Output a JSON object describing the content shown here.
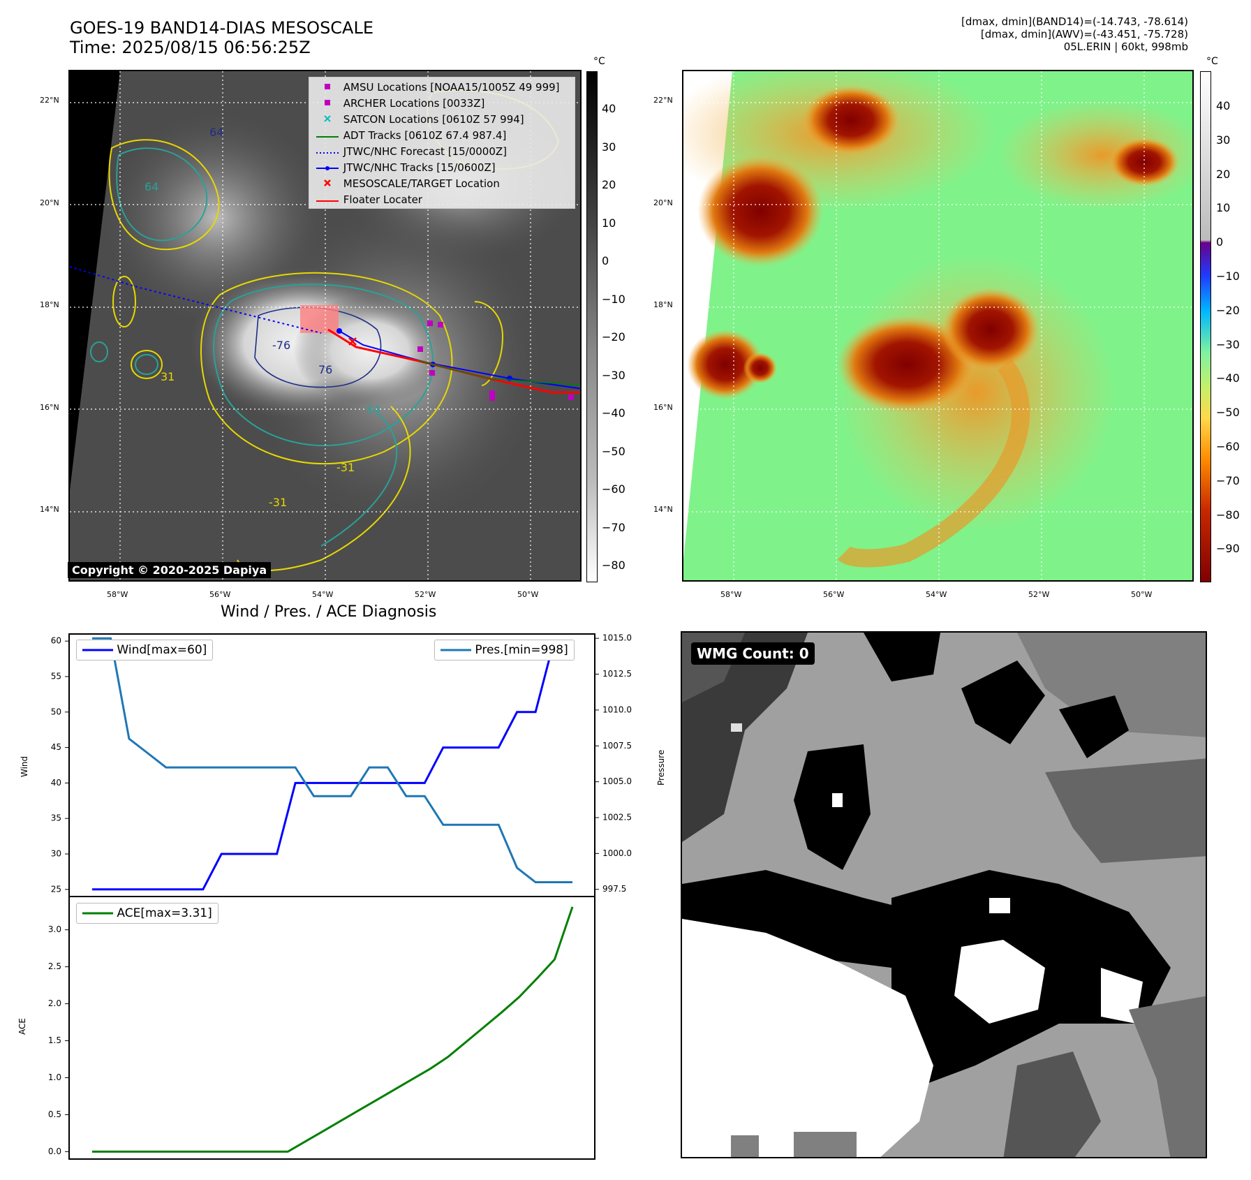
{
  "header": {
    "title_line1": "GOES-19 BAND14-DIAS MESOSCALE",
    "title_line2": "Time: 2025/08/15 06:56:25Z",
    "info_line1": "[dmax, dmin](BAND14)=(-14.743, -78.614)",
    "info_line2": "[dmax, dmin](AWV)=(-43.451, -75.728)",
    "info_line3": "05L.ERIN | 60kt, 998mb"
  },
  "map": {
    "lat_labels": [
      "22°N",
      "20°N",
      "18°N",
      "16°N",
      "14°N"
    ],
    "lon_labels": [
      "58°W",
      "56°W",
      "54°W",
      "52°W",
      "50°W"
    ],
    "copyright": "Copyright © 2020-2025 Dapiya",
    "contour_labels": [
      "64",
      "64",
      "64",
      "-76",
      "76",
      "-31",
      "-31",
      "31"
    ],
    "legend": [
      {
        "label": "AMSU Locations [NOAA15/1005Z 49 999]",
        "color": "#c000c0",
        "symbol": "square"
      },
      {
        "label": "ARCHER Locations [0033Z]",
        "color": "#c000c0",
        "symbol": "square"
      },
      {
        "label": "SATCON Locations [0610Z 57 994]",
        "color": "#00bfbf",
        "symbol": "x"
      },
      {
        "label": "ADT Tracks [0610Z 67.4 987.4]",
        "color": "#008000",
        "symbol": "line"
      },
      {
        "label": "JTWC/NHC Forecast [15/0000Z]",
        "color": "#0000ff",
        "symbol": "dotted"
      },
      {
        "label": "JTWC/NHC Tracks [15/0600Z]",
        "color": "#0000ff",
        "symbol": "line-dot"
      },
      {
        "label": "MESOSCALE/TARGET Location",
        "color": "#ff0000",
        "symbol": "x"
      },
      {
        "label": "Floater Locater",
        "color": "#ff0000",
        "symbol": "line"
      }
    ]
  },
  "colorbar_left": {
    "unit": "°C",
    "ticks": [
      "40",
      "30",
      "20",
      "10",
      "0",
      "−10",
      "−20",
      "−30",
      "−40",
      "−50",
      "−60",
      "−70",
      "−80"
    ]
  },
  "colorbar_right": {
    "unit": "°C",
    "ticks": [
      "40",
      "30",
      "20",
      "10",
      "0",
      "−10",
      "−20",
      "−30",
      "−40",
      "−50",
      "−60",
      "−70",
      "−80",
      "−90"
    ]
  },
  "diagnosis": {
    "title": "Wind / Pres. / ACE Diagnosis",
    "wind_legend": "Wind[max=60]",
    "pres_legend": "Pres.[min=998]",
    "ace_legend": "ACE[max=3.31]",
    "wind_axis_label": "Wind",
    "pres_axis_label": "Pressure",
    "ace_axis_label": "ACE",
    "wind_ticks": [
      "60",
      "55",
      "50",
      "45",
      "40",
      "35",
      "30",
      "25"
    ],
    "pres_ticks": [
      "1015.0",
      "1012.5",
      "1010.0",
      "1007.5",
      "1005.0",
      "1002.5",
      "1000.0",
      "997.5"
    ],
    "ace_ticks": [
      "3.0",
      "2.5",
      "2.0",
      "1.5",
      "1.0",
      "0.5",
      "0.0"
    ]
  },
  "wmg": {
    "badge": "WMG Count: 0"
  },
  "chart_data": [
    {
      "type": "line",
      "series": [
        {
          "name": "Wind[max=60]",
          "color": "#0000ff",
          "values": [
            25,
            25,
            25,
            25,
            25,
            25,
            25,
            30,
            30,
            30,
            30,
            40,
            40,
            40,
            40,
            40,
            40,
            40,
            40,
            45,
            45,
            45,
            45,
            50,
            50,
            60,
            60
          ]
        },
        {
          "name": "Pres.[min=998]",
          "color": "#1f77b4",
          "axis": "right",
          "values": [
            1015,
            1015,
            1008,
            1007,
            1006,
            1006,
            1006,
            1006,
            1006,
            1006,
            1006,
            1006,
            1004,
            1004,
            1004,
            1006,
            1006,
            1004,
            1004,
            1002,
            1002,
            1002,
            1002,
            999,
            998,
            998,
            998
          ]
        }
      ],
      "ylim": [
        24,
        61
      ],
      "ylim_right": [
        997,
        1015.3
      ]
    },
    {
      "type": "line",
      "series": [
        {
          "name": "ACE[max=3.31]",
          "color": "#008000",
          "values": [
            0,
            0,
            0,
            0,
            0,
            0,
            0,
            0,
            0,
            0,
            0,
            0,
            0.14,
            0.28,
            0.42,
            0.56,
            0.7,
            0.84,
            0.98,
            1.12,
            1.28,
            1.48,
            1.68,
            1.88,
            2.09,
            2.34,
            2.6,
            3.31
          ]
        }
      ],
      "ylim": [
        -0.1,
        3.45
      ]
    }
  ]
}
